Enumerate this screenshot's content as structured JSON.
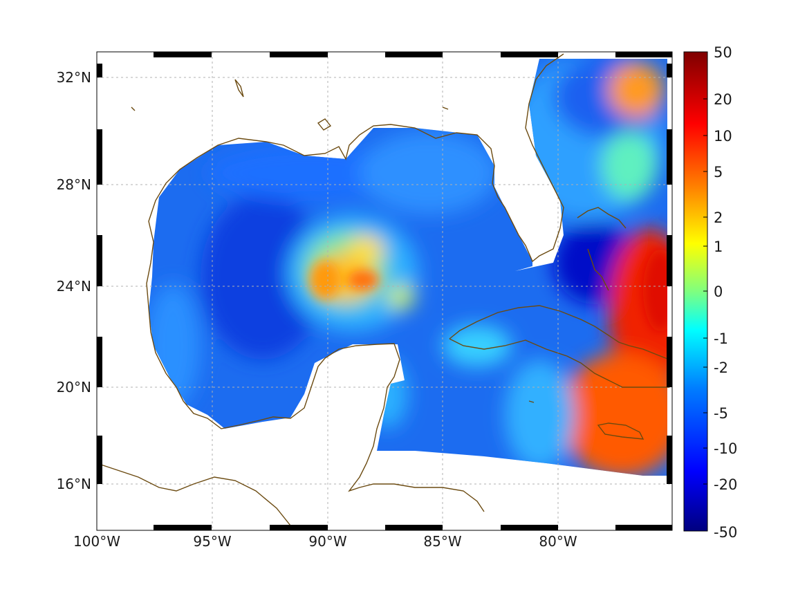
{
  "map": {
    "longitude_ticks": [
      "100°W",
      "95°W",
      "90°W",
      "85°W",
      "80°W"
    ],
    "latitude_ticks": [
      "32°N",
      "28°N",
      "24°N",
      "20°N",
      "16°N"
    ],
    "grid": true,
    "coastline_color": "#6b4a10"
  },
  "colorbar": {
    "labels": [
      "50",
      "20",
      "10",
      "5",
      "2",
      "1",
      "0",
      "-1",
      "-2",
      "-5",
      "-10",
      "-20",
      "-50"
    ],
    "colormap": "jet",
    "colors": [
      "#7f0000",
      "#ff0000",
      "#ff7f00",
      "#ffff00",
      "#7fff7f",
      "#00ffff",
      "#007fff",
      "#0000ff",
      "#00007f"
    ]
  }
}
